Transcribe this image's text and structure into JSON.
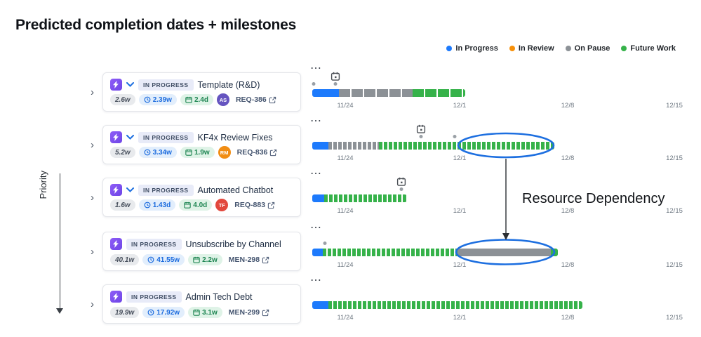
{
  "page": {
    "title": "Predicted completion dates + milestones"
  },
  "legend": {
    "items": [
      {
        "label": "In Progress",
        "color": "#1D7AFC"
      },
      {
        "label": "In Review",
        "color": "#F79009"
      },
      {
        "label": "On Pause",
        "color": "#8C9196"
      },
      {
        "label": "Future Work",
        "color": "#36B24A"
      }
    ]
  },
  "axis": {
    "priority_label": "Priority"
  },
  "annotation": {
    "label": "Resource Dependency"
  },
  "icons": {
    "more": "⋯",
    "chevron_right": "›"
  },
  "tasks": [
    {
      "status": "IN PROGRESS",
      "name": "Template (R&D)",
      "expandable": true,
      "effort": "2.6w",
      "clock": "2.39w",
      "calendar": "2.4d",
      "avatar": {
        "initials": "AS",
        "color": "#6554C0"
      },
      "ticket": "REQ-386"
    },
    {
      "status": "IN PROGRESS",
      "name": "KF4x Review Fixes",
      "expandable": true,
      "effort": "5.2w",
      "clock": "3.34w",
      "calendar": "1.9w",
      "avatar": {
        "initials": "RM",
        "color": "#F18D13"
      },
      "ticket": "REQ-836"
    },
    {
      "status": "IN PROGRESS",
      "name": "Automated Chatbot",
      "expandable": true,
      "effort": "1.6w",
      "clock": "1.43d",
      "calendar": "4.0d",
      "avatar": {
        "initials": "TF",
        "color": "#E2483D"
      },
      "ticket": "REQ-883"
    },
    {
      "status": "IN PROGRESS",
      "name": "Unsubscribe by Channel",
      "expandable": false,
      "effort": "40.1w",
      "clock": "41.55w",
      "calendar": "2.2w",
      "avatar": null,
      "ticket": "MEN-298"
    },
    {
      "status": "IN PROGRESS",
      "name": "Admin Tech Debt",
      "expandable": false,
      "effort": "19.9w",
      "clock": "17.92w",
      "calendar": "3.1w",
      "avatar": null,
      "ticket": "MEN-299"
    }
  ],
  "chart_data": {
    "type": "gantt",
    "dates": [
      "11/24",
      "12/1",
      "12/8",
      "12/15"
    ],
    "colors": {
      "in_progress": "#1D7AFC",
      "on_pause": "#8C9196",
      "future": "#36B24A"
    },
    "rows": [
      {
        "task": "Template (R&D)",
        "segments": [
          {
            "status": "in_progress",
            "from": 8,
            "to": 46,
            "stripe": "none"
          },
          {
            "status": "on_pause",
            "from": 46,
            "to": 151,
            "stripe": "sparse"
          },
          {
            "status": "future",
            "from": 151,
            "to": 226,
            "stripe": "sparse"
          }
        ],
        "milestones": [
          41
        ],
        "dots": [
          10
        ]
      },
      {
        "task": "KF4x Review Fixes",
        "segments": [
          {
            "status": "in_progress",
            "from": 8,
            "to": 31,
            "stripe": "none"
          },
          {
            "status": "on_pause",
            "from": 31,
            "to": 103,
            "stripe": "dense"
          },
          {
            "status": "future",
            "from": 103,
            "to": 353,
            "stripe": "dense"
          }
        ],
        "milestones": [
          163
        ],
        "dots": [
          211
        ]
      },
      {
        "task": "Automated Chatbot",
        "segments": [
          {
            "status": "in_progress",
            "from": 8,
            "to": 25,
            "stripe": "none"
          },
          {
            "status": "future",
            "from": 25,
            "to": 143,
            "stripe": "dense"
          }
        ],
        "milestones": [
          135
        ],
        "dots": []
      },
      {
        "task": "Unsubscribe by Channel",
        "segments": [
          {
            "status": "in_progress",
            "from": 8,
            "to": 23,
            "stripe": "none"
          },
          {
            "status": "future",
            "from": 23,
            "to": 215,
            "stripe": "dense"
          },
          {
            "status": "on_pause",
            "from": 215,
            "to": 348,
            "stripe": "none"
          },
          {
            "status": "future",
            "from": 348,
            "to": 358,
            "stripe": "none"
          }
        ],
        "milestones": [],
        "dots": [
          26
        ]
      },
      {
        "task": "Admin Tech Debt",
        "segments": [
          {
            "status": "in_progress",
            "from": 8,
            "to": 31,
            "stripe": "none"
          },
          {
            "status": "future",
            "from": 31,
            "to": 393,
            "stripe": "dense"
          }
        ],
        "milestones": [],
        "dots": []
      }
    ]
  }
}
